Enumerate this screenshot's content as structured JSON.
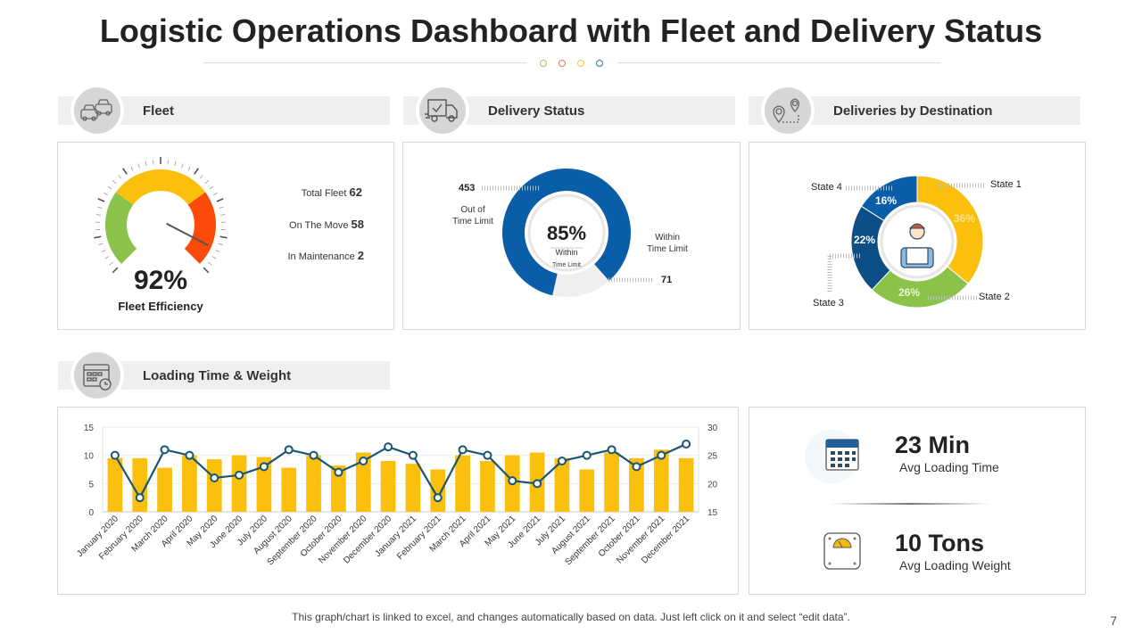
{
  "title": "Logistic Operations Dashboard with Fleet and Delivery Status",
  "separator_dot_colors": [
    "#9bc45a",
    "#e07a5a",
    "#f2c744",
    "#3a6f98"
  ],
  "sections": {
    "fleet": {
      "label": "Fleet",
      "icon": "cars-icon"
    },
    "delivery": {
      "label": "Delivery Status",
      "icon": "truck-check-icon"
    },
    "destination": {
      "label": "Deliveries by Destination",
      "icon": "map-pins-icon"
    },
    "loading": {
      "label": "Loading Time & Weight",
      "icon": "calendar-clock-icon"
    }
  },
  "fleet": {
    "efficiency": "92%",
    "efficiency_label": "Fleet Efficiency",
    "efficiency_value": 0.92,
    "stats": [
      {
        "label": "Total Fleet",
        "value": "62"
      },
      {
        "label": "On The Move",
        "value": "58"
      },
      {
        "label": "In Maintenance",
        "value": "2"
      }
    ],
    "gauge_colors": [
      "#8bc34a",
      "#fbbf0e",
      "#fb4a0a"
    ]
  },
  "delivery": {
    "center_value": "85%",
    "center_label_1": "Within",
    "center_label_2": "Time Limit",
    "out_value": "453",
    "out_label_1": "Out of",
    "out_label_2": "Time Limit",
    "within_value": "71",
    "within_label_1": "Within",
    "within_label_2": "Time Limit"
  },
  "destination": {
    "states": [
      {
        "name": "State 1",
        "pct": "36%"
      },
      {
        "name": "State 2",
        "pct": "26%"
      },
      {
        "name": "State 3",
        "pct": "22%"
      },
      {
        "name": "State 4",
        "pct": "16%"
      }
    ]
  },
  "kpis": {
    "time_value": "23 Min",
    "time_label": "Avg Loading Time",
    "weight_value": "10 Tons",
    "weight_label": "Avg Loading Weight"
  },
  "chart_data": [
    {
      "type": "pie",
      "title": "Delivery Status",
      "labels": [
        "Within Time Limit",
        "Out of Time Limit"
      ],
      "values": [
        85,
        15
      ],
      "colors": [
        "#0a5ea8",
        "#efefef"
      ]
    },
    {
      "type": "pie",
      "title": "Deliveries by Destination",
      "labels": [
        "State 1",
        "State 2",
        "State 3",
        "State 4"
      ],
      "values": [
        36,
        26,
        22,
        16
      ],
      "colors": [
        "#fbbf0e",
        "#8bc34a",
        "#0b4f86",
        "#0a5ea8"
      ]
    },
    {
      "type": "bar",
      "title": "Loading Time & Weight",
      "categories": [
        "January 2020",
        "February 2020",
        "March 2020",
        "April 2020",
        "May 2020",
        "June 2020",
        "July 2020",
        "August 2020",
        "September 2020",
        "October 2020",
        "November 2020",
        "December 2020",
        "January 2021",
        "February 2021",
        "March 2021",
        "April 2021",
        "May 2021",
        "June 2021",
        "July 2021",
        "August 2021",
        "September 2021",
        "October 2021",
        "November 2021",
        "December 2021"
      ],
      "series": [
        {
          "name": "Weight",
          "type": "bar",
          "axis": "left",
          "color": "#fbbf0e",
          "values": [
            9.5,
            9.5,
            7.8,
            10,
            9.3,
            10,
            9.7,
            7.8,
            10,
            8.2,
            10.5,
            9,
            8.5,
            7.5,
            10,
            9,
            10,
            10.5,
            9.5,
            7.5,
            10.5,
            9.5,
            11,
            9.5
          ]
        },
        {
          "name": "Time",
          "type": "line",
          "axis": "right",
          "color": "#1b5673",
          "values": [
            25,
            17.5,
            26,
            25,
            21,
            21.5,
            23,
            26,
            25,
            22,
            24,
            26.5,
            25,
            17.5,
            26,
            25,
            20.5,
            20,
            24,
            25,
            26,
            23,
            25,
            27
          ]
        }
      ],
      "ylim": [
        0,
        15
      ],
      "yticks": [
        "0",
        "5",
        "10",
        "15"
      ],
      "y2lim": [
        15,
        30
      ],
      "y2ticks": [
        "15",
        "20",
        "25",
        "30"
      ],
      "xlabel": "",
      "ylabel": ""
    }
  ],
  "footer": "This graph/chart is linked to excel, and changes automatically based on data. Just left click on it and select “edit data”.",
  "page_number": "7"
}
